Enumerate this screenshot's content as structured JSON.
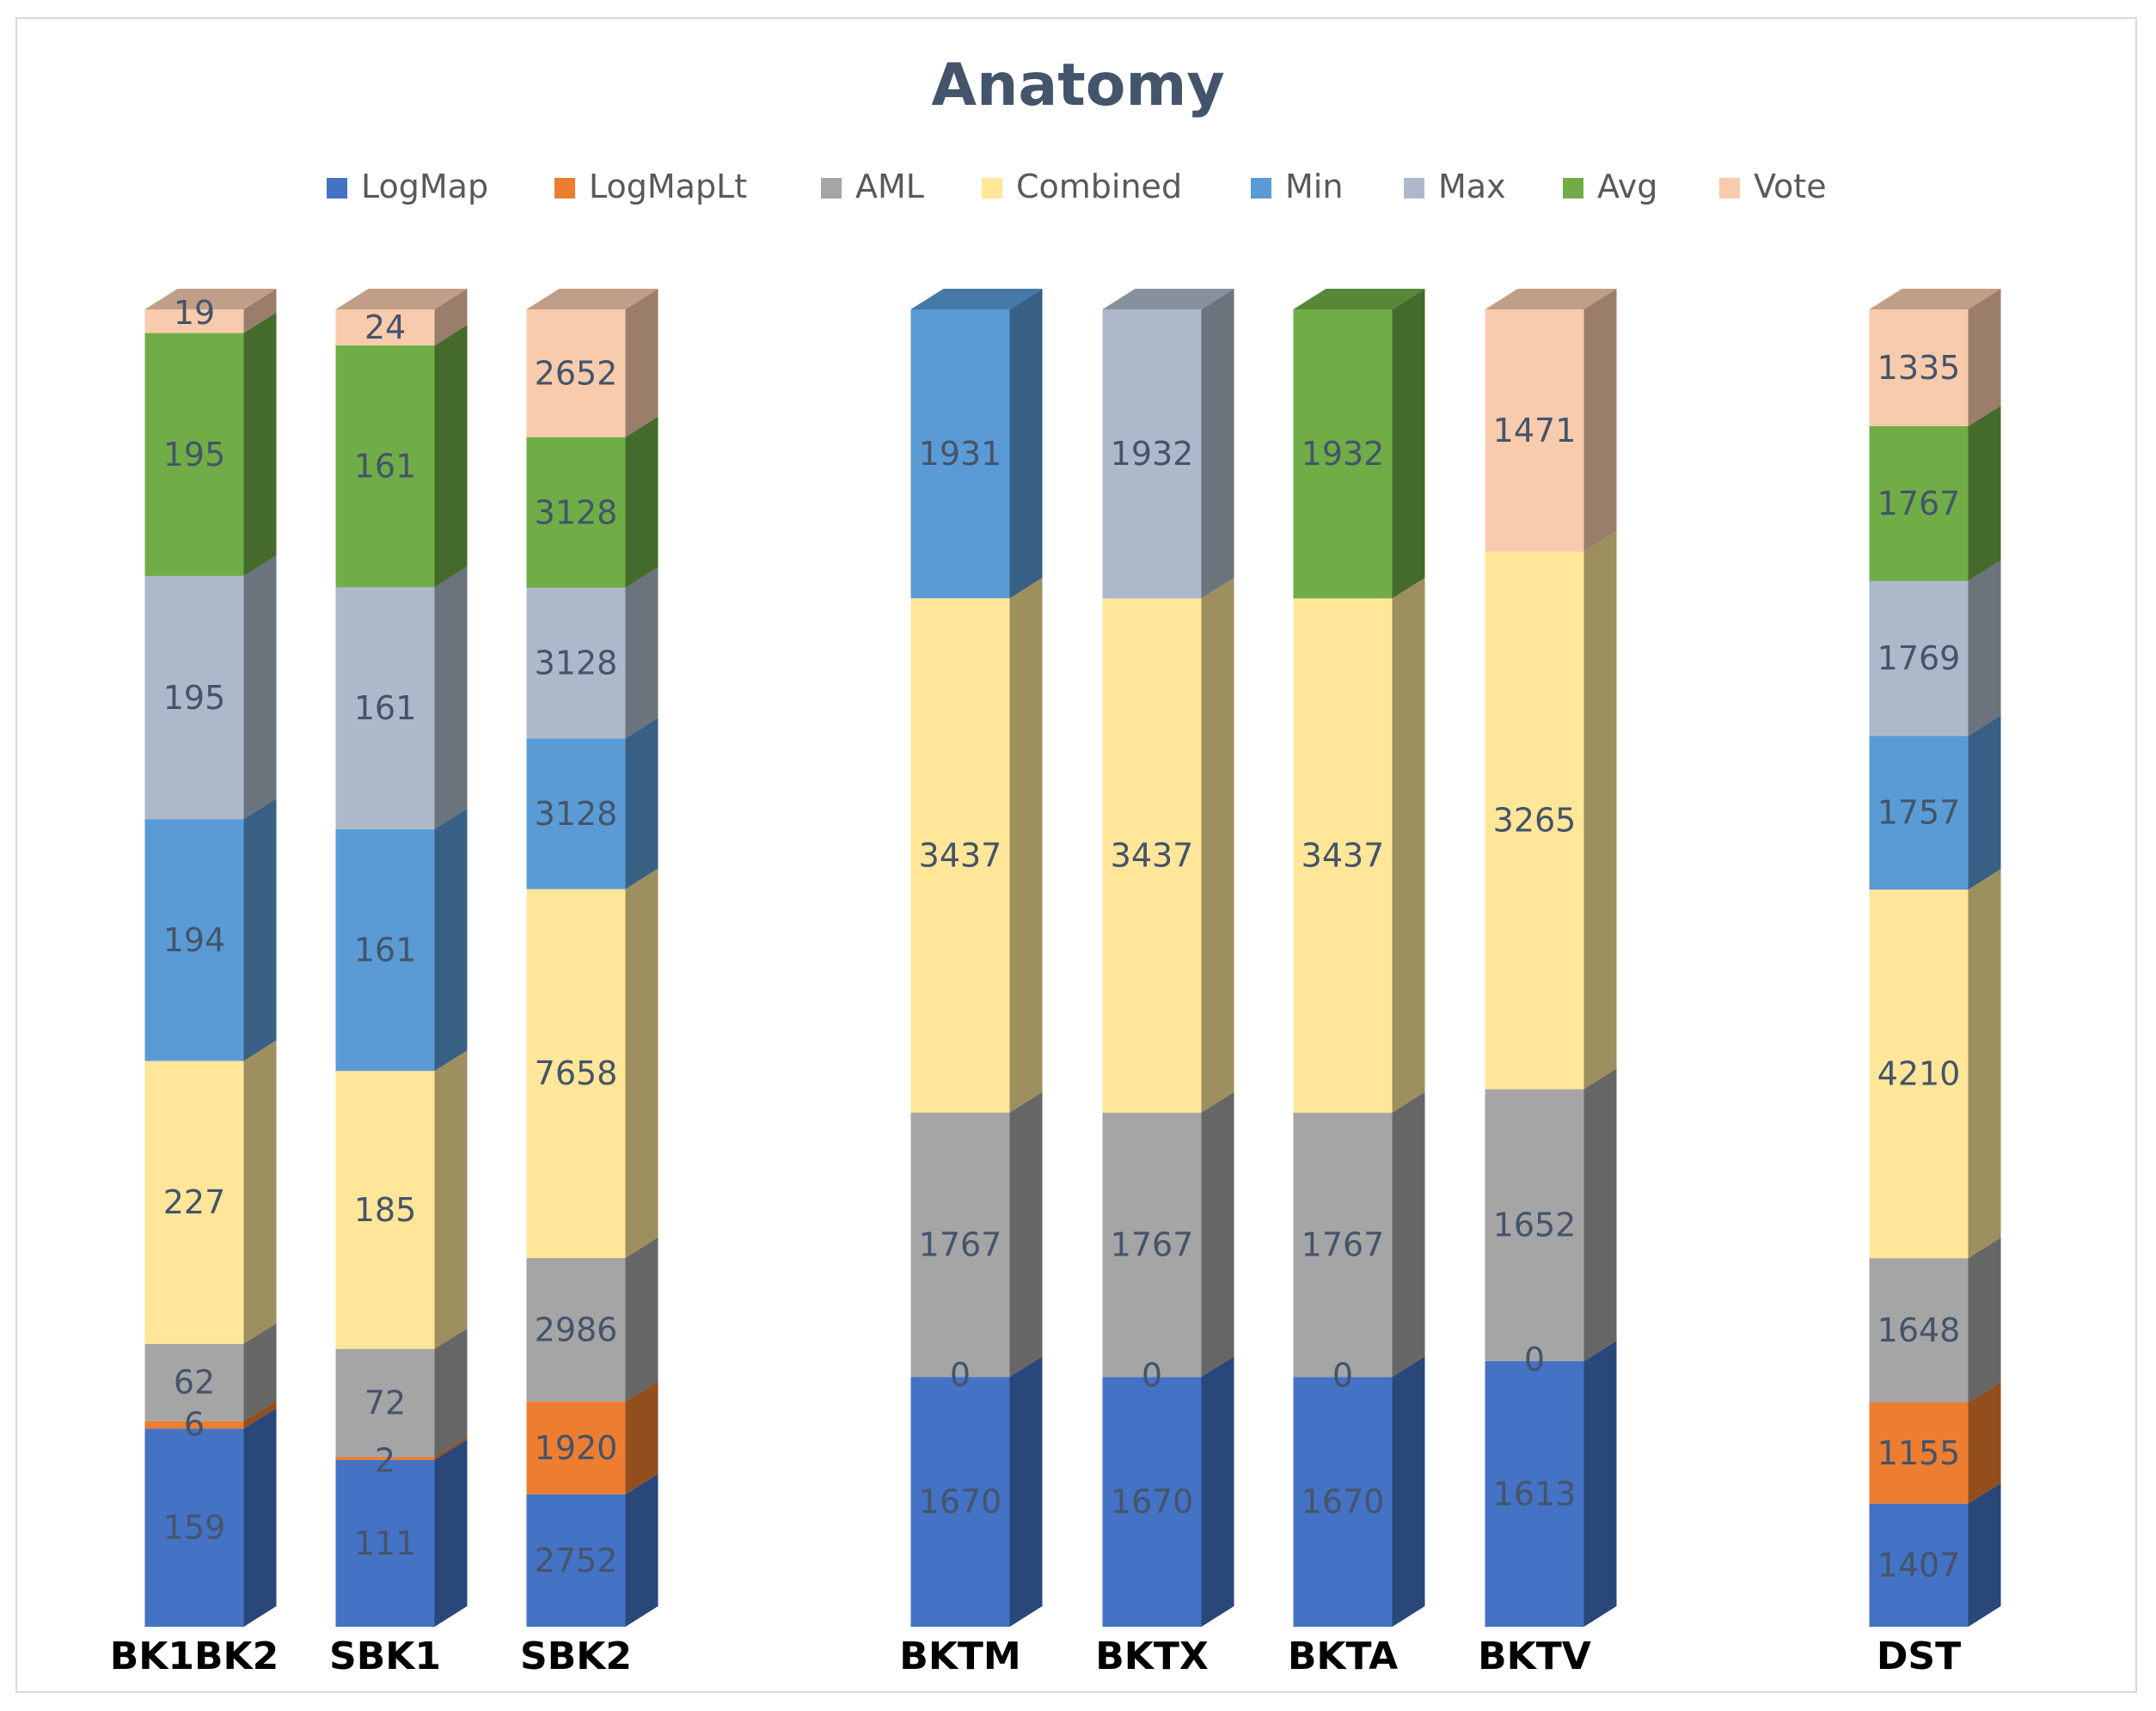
{
  "chart_data": {
    "type": "bar",
    "stacked": true,
    "orientation": "vertical",
    "style": "3d",
    "title": "Anatomy",
    "xlabel": "",
    "ylabel": "",
    "legend_position": "top",
    "grid": false,
    "categories": [
      "BK1BK2",
      "SBK1",
      "SBK2",
      "BKTM",
      "BKTX",
      "BKTA",
      "BKTV",
      "DST"
    ],
    "series": [
      {
        "name": "LogMap",
        "color": "#4472C4",
        "values": [
          159,
          111,
          2752,
          1670,
          1670,
          1670,
          1613,
          1407
        ]
      },
      {
        "name": "LogMapLt",
        "color": "#ED7D31",
        "values": [
          6,
          2,
          1920,
          0,
          0,
          0,
          0,
          1155
        ]
      },
      {
        "name": "AML",
        "color": "#A5A5A5",
        "values": [
          62,
          72,
          2986,
          1767,
          1767,
          1767,
          1652,
          1648
        ]
      },
      {
        "name": "Combined",
        "color": "#FFE699",
        "values": [
          227,
          185,
          7658,
          3437,
          3437,
          3437,
          3265,
          4210
        ]
      },
      {
        "name": "Min",
        "color": "#5B9BD5",
        "values": [
          194,
          161,
          3128,
          1931,
          null,
          null,
          null,
          1757
        ]
      },
      {
        "name": "Max",
        "color": "#ADB9CA",
        "values": [
          195,
          161,
          3128,
          null,
          1932,
          null,
          null,
          1769
        ]
      },
      {
        "name": "Avg",
        "color": "#70AD47",
        "values": [
          195,
          161,
          3128,
          null,
          null,
          1932,
          null,
          1767
        ]
      },
      {
        "name": "Vote",
        "color": "#F8CBAD",
        "values": [
          19,
          24,
          2652,
          null,
          null,
          null,
          1471,
          1335
        ]
      }
    ]
  }
}
